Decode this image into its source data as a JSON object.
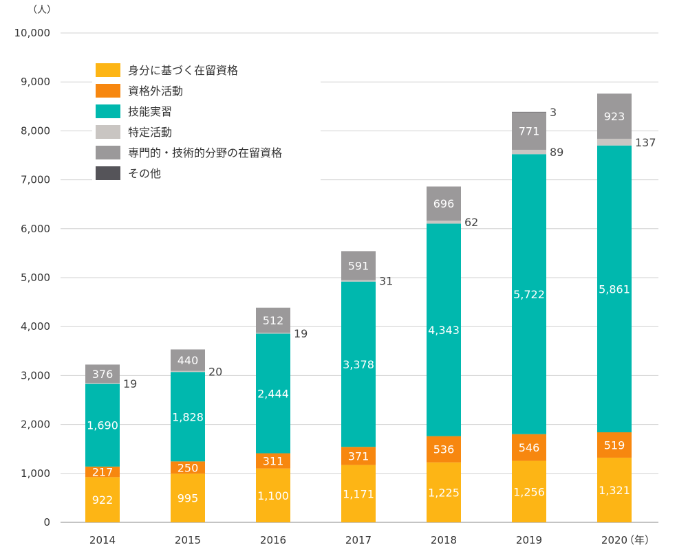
{
  "chart_data": {
    "type": "bar",
    "stacked": true,
    "y_unit": "（人）",
    "x_unit": "（年）",
    "categories": [
      "2014",
      "2015",
      "2016",
      "2017",
      "2018",
      "2019",
      "2020"
    ],
    "ylim": [
      0,
      10000
    ],
    "yticks": [
      0,
      1000,
      2000,
      3000,
      4000,
      5000,
      6000,
      7000,
      8000,
      9000,
      10000
    ],
    "ytick_labels": [
      "0",
      "1,000",
      "2,000",
      "3,000",
      "4,000",
      "5,000",
      "6,000",
      "7,000",
      "8,000",
      "9,000",
      "10,000"
    ],
    "grid": true,
    "legend_position": "top-left",
    "series": [
      {
        "name": "身分に基づく在留資格",
        "color": "#FDB515",
        "values": [
          922,
          995,
          1100,
          1171,
          1225,
          1256,
          1321
        ],
        "labels": [
          "922",
          "995",
          "1,100",
          "1,171",
          "1,225",
          "1,256",
          "1,321"
        ]
      },
      {
        "name": "資格外活動",
        "color": "#F7870F",
        "values": [
          217,
          250,
          311,
          371,
          536,
          546,
          519
        ],
        "labels": [
          "217",
          "250",
          "311",
          "371",
          "536",
          "546",
          "519"
        ]
      },
      {
        "name": "技能実習",
        "color": "#00B8AE",
        "values": [
          1690,
          1828,
          2444,
          3378,
          4343,
          5722,
          5861
        ],
        "labels": [
          "1,690",
          "1,828",
          "2,444",
          "3,378",
          "4,343",
          "5,722",
          "5,861"
        ]
      },
      {
        "name": "特定活動",
        "color": "#C9C5C2",
        "values": [
          19,
          20,
          19,
          31,
          62,
          89,
          137
        ],
        "labels": [
          "19",
          "20",
          "19",
          "31",
          "62",
          "89",
          "137"
        ]
      },
      {
        "name": "専門的・技術的分野の在留資格",
        "color": "#9B999A",
        "values": [
          376,
          440,
          512,
          591,
          696,
          771,
          923
        ],
        "labels": [
          "376",
          "440",
          "512",
          "591",
          "696",
          "771",
          "923"
        ]
      },
      {
        "name": "その他",
        "color": "#555459",
        "values": [
          0,
          0,
          0,
          0,
          0,
          3,
          0
        ],
        "labels": [
          "",
          "",
          "",
          "",
          "",
          "3",
          ""
        ]
      }
    ]
  }
}
